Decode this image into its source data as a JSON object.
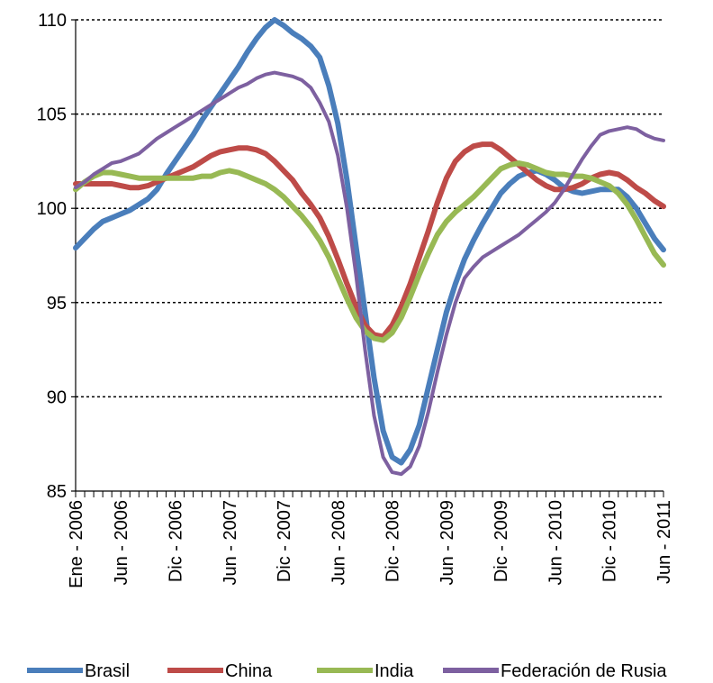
{
  "chart_data": {
    "type": "line",
    "categories": [
      "Ene - 2006",
      null,
      null,
      null,
      null,
      "Jun - 2006",
      null,
      null,
      null,
      null,
      null,
      "Dic - 2006",
      null,
      null,
      null,
      null,
      null,
      "Jun - 2007",
      null,
      null,
      null,
      null,
      null,
      "Dic - 2007",
      null,
      null,
      null,
      null,
      null,
      "Jun - 2008",
      null,
      null,
      null,
      null,
      null,
      "Dic - 2008",
      null,
      null,
      null,
      null,
      null,
      "Jun - 2009",
      null,
      null,
      null,
      null,
      null,
      "Dic - 2009",
      null,
      null,
      null,
      null,
      null,
      "Jun - 2010",
      null,
      null,
      null,
      null,
      null,
      "Dic - 2010",
      null,
      null,
      null,
      null,
      null,
      "Jun - 2011"
    ],
    "series": [
      {
        "name": "Brasil",
        "color": "#4a7ebb",
        "values": [
          97.9,
          98.4,
          98.9,
          99.3,
          99.5,
          99.7,
          99.9,
          100.2,
          100.5,
          101.0,
          101.8,
          102.5,
          103.2,
          103.9,
          104.7,
          105.4,
          106.1,
          106.8,
          107.5,
          108.3,
          109.0,
          109.6,
          110.0,
          109.7,
          109.3,
          109.0,
          108.6,
          108.0,
          106.5,
          104.5,
          101.5,
          98.0,
          94.5,
          91.0,
          88.2,
          86.8,
          86.5,
          87.2,
          88.5,
          90.5,
          92.5,
          94.5,
          96.0,
          97.3,
          98.3,
          99.2,
          100.0,
          100.8,
          101.3,
          101.7,
          101.9,
          102.0,
          101.8,
          101.5,
          101.1,
          100.9,
          100.8,
          100.9,
          101.0,
          101.0,
          101.0,
          100.6,
          100.0,
          99.2,
          98.4,
          97.8
        ]
      },
      {
        "name": "China",
        "color": "#be4b48",
        "values": [
          101.3,
          101.3,
          101.3,
          101.3,
          101.3,
          101.2,
          101.1,
          101.1,
          101.2,
          101.4,
          101.6,
          101.8,
          102.0,
          102.2,
          102.5,
          102.8,
          103.0,
          103.1,
          103.2,
          103.2,
          103.1,
          102.9,
          102.5,
          102.0,
          101.5,
          100.8,
          100.2,
          99.5,
          98.5,
          97.3,
          96.0,
          94.8,
          93.8,
          93.3,
          93.2,
          93.8,
          94.8,
          96.0,
          97.4,
          98.8,
          100.3,
          101.6,
          102.5,
          103.0,
          103.3,
          103.4,
          103.4,
          103.1,
          102.7,
          102.3,
          101.9,
          101.5,
          101.2,
          101.0,
          101.0,
          101.1,
          101.3,
          101.6,
          101.8,
          101.9,
          101.8,
          101.5,
          101.1,
          100.8,
          100.4,
          100.1
        ]
      },
      {
        "name": "India",
        "color": "#98b954",
        "values": [
          101.0,
          101.4,
          101.7,
          101.9,
          101.9,
          101.8,
          101.7,
          101.6,
          101.6,
          101.6,
          101.6,
          101.6,
          101.6,
          101.6,
          101.7,
          101.7,
          101.9,
          102.0,
          101.9,
          101.7,
          101.5,
          101.3,
          101.0,
          100.6,
          100.1,
          99.6,
          99.0,
          98.3,
          97.4,
          96.3,
          95.2,
          94.2,
          93.5,
          93.1,
          93.0,
          93.4,
          94.2,
          95.3,
          96.5,
          97.6,
          98.6,
          99.3,
          99.8,
          100.2,
          100.6,
          101.1,
          101.6,
          102.1,
          102.3,
          102.4,
          102.3,
          102.1,
          101.9,
          101.8,
          101.8,
          101.7,
          101.7,
          101.6,
          101.4,
          101.2,
          100.8,
          100.2,
          99.4,
          98.5,
          97.6,
          97.0
        ]
      },
      {
        "name": "Federación de Rusia",
        "color": "#7d60a0",
        "values": [
          101.1,
          101.4,
          101.8,
          102.1,
          102.4,
          102.5,
          102.7,
          102.9,
          103.3,
          103.7,
          104.0,
          104.3,
          104.6,
          104.9,
          105.2,
          105.5,
          105.8,
          106.1,
          106.4,
          106.6,
          106.9,
          107.1,
          107.2,
          107.1,
          107.0,
          106.8,
          106.4,
          105.6,
          104.6,
          102.8,
          100.0,
          96.5,
          92.5,
          89.0,
          86.8,
          86.0,
          85.9,
          86.3,
          87.4,
          89.2,
          91.3,
          93.3,
          95.0,
          96.3,
          96.9,
          97.4,
          97.7,
          98.0,
          98.3,
          98.6,
          99.0,
          99.4,
          99.8,
          100.3,
          101.0,
          101.8,
          102.6,
          103.3,
          103.9,
          104.1,
          104.2,
          104.3,
          104.2,
          103.9,
          103.7,
          103.6
        ]
      }
    ],
    "ylim": [
      85,
      110
    ],
    "yticks": [
      85,
      90,
      95,
      100,
      105,
      110
    ],
    "grid": true,
    "legend": "bottom"
  }
}
